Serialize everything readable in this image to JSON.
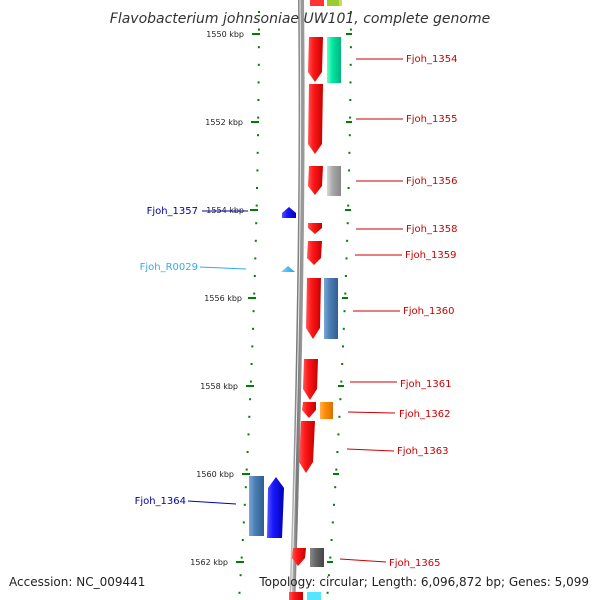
{
  "title": "Flavobacterium johnsoniae UW101, complete genome",
  "footer": {
    "accession": "Accession: NC_009441",
    "topology": "Topology: circular; Length: 6,096,872 bp; Genes: 5,099"
  },
  "colors": {
    "forward_gene": "#e60000",
    "reverse_gene": "#0000e6",
    "rna": "#33aaee",
    "cog_steelblue": "#4a7fb5",
    "cog_green": "#00e6a0",
    "cog_gray": "#a8a8a8",
    "cog_orange": "#ff8c00",
    "cog_darkgray": "#666666",
    "tick": "#008000",
    "backbone": "#888888",
    "label_red": "#cc0000",
    "label_blue": "#0000aa",
    "label_cyan": "#33aaee"
  },
  "ticks": [
    {
      "label": "1550 kbp"
    },
    {
      "label": "1552 kbp"
    },
    {
      "label": "1554 kbp"
    },
    {
      "label": "1556 kbp"
    },
    {
      "label": "1558 kbp"
    },
    {
      "label": "1560 kbp"
    },
    {
      "label": "1562 kbp"
    }
  ],
  "features": [
    {
      "id": "fjoh-1354",
      "label": "Fjoh_1354",
      "strand": "forward",
      "type": "gene",
      "cog_color": "cog_green"
    },
    {
      "id": "fjoh-1355",
      "label": "Fjoh_1355",
      "strand": "forward",
      "type": "gene",
      "cog_color": null
    },
    {
      "id": "fjoh-1356",
      "label": "Fjoh_1356",
      "strand": "forward",
      "type": "gene",
      "cog_color": "cog_gray"
    },
    {
      "id": "fjoh-1357",
      "label": "Fjoh_1357",
      "strand": "reverse",
      "type": "gene",
      "cog_color": null
    },
    {
      "id": "fjoh-1358",
      "label": "Fjoh_1358",
      "strand": "forward",
      "type": "gene",
      "cog_color": null
    },
    {
      "id": "fjoh-1359",
      "label": "Fjoh_1359",
      "strand": "forward",
      "type": "gene",
      "cog_color": null
    },
    {
      "id": "fjoh-r0029",
      "label": "Fjoh_R0029",
      "strand": "reverse",
      "type": "rna",
      "cog_color": null
    },
    {
      "id": "fjoh-1360",
      "label": "Fjoh_1360",
      "strand": "forward",
      "type": "gene",
      "cog_color": "cog_steelblue"
    },
    {
      "id": "fjoh-1361",
      "label": "Fjoh_1361",
      "strand": "forward",
      "type": "gene",
      "cog_color": null
    },
    {
      "id": "fjoh-1362",
      "label": "Fjoh_1362",
      "strand": "forward",
      "type": "gene",
      "cog_color": "cog_orange"
    },
    {
      "id": "fjoh-1363",
      "label": "Fjoh_1363",
      "strand": "forward",
      "type": "gene",
      "cog_color": null
    },
    {
      "id": "fjoh-1364",
      "label": "Fjoh_1364",
      "strand": "reverse",
      "type": "gene",
      "cog_color": "cog_steelblue"
    },
    {
      "id": "fjoh-1365",
      "label": "Fjoh_1365",
      "strand": "forward",
      "type": "gene",
      "cog_color": "cog_darkgray"
    }
  ]
}
